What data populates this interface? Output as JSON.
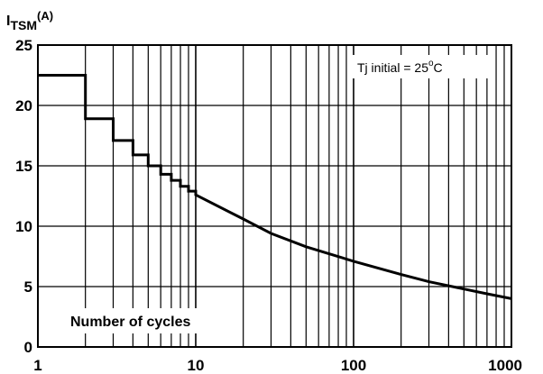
{
  "chart_data": {
    "type": "line",
    "title": "",
    "ylabel": {
      "prefix": "I",
      "subscript": "TSM",
      "unit": "(A)"
    },
    "xlabel": "Number of cycles",
    "xscale": "log",
    "xlim": [
      1,
      1000
    ],
    "ylim": [
      0,
      25
    ],
    "x_ticks": [
      1,
      10,
      100,
      1000
    ],
    "x_tick_labels": [
      "1",
      "10",
      "100",
      "1000"
    ],
    "y_ticks": [
      0,
      5,
      10,
      15,
      20,
      25
    ],
    "y_tick_labels": [
      "0",
      "5",
      "10",
      "15",
      "20",
      "25"
    ],
    "grid": true,
    "annotation": {
      "text": "Tj initial = 25",
      "superscript": "o",
      "suffix": "C"
    },
    "series": [
      {
        "x": [
          1,
          2,
          2,
          3,
          3,
          4,
          4,
          5,
          5,
          6,
          6,
          7,
          7,
          8,
          8,
          9,
          9,
          10,
          10,
          20,
          30,
          50,
          100,
          200,
          300,
          500,
          700,
          1000
        ],
        "values": [
          22.5,
          22.5,
          18.9,
          18.9,
          17.1,
          17.1,
          15.9,
          15.9,
          15.0,
          15.0,
          14.3,
          14.3,
          13.8,
          13.8,
          13.3,
          13.3,
          12.9,
          12.9,
          12.6,
          10.6,
          9.4,
          8.3,
          7.1,
          6.0,
          5.4,
          4.8,
          4.4,
          4.0
        ]
      }
    ]
  }
}
